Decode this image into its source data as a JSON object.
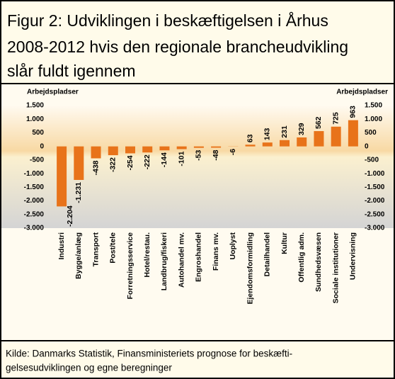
{
  "chart_data": {
    "type": "bar",
    "title": [
      "Figur 2: Udviklingen i beskæftigelsen i Århus",
      "2008-2012 hvis den regionale brancheudvikling",
      "slår fuldt igennem"
    ],
    "y_label": "Arbejdspladser",
    "y2_label": "Arbejdspladser",
    "categories": [
      "Industri",
      "Bygge/anlæg",
      "Transport",
      "Post/tele",
      "Forretningsservice",
      "Hotel/restau.",
      "Landbrug/fiskeri",
      "Autohandel mv.",
      "Engroshandel",
      "Finans mv.",
      "Uoplyst",
      "Ejendomsformidling",
      "Detailhandel",
      "Kultur",
      "Offentlig adm.",
      "Sundhedsvæsen",
      "Sociale institutioner",
      "Undervisning"
    ],
    "values": [
      -2204,
      -1231,
      -438,
      -322,
      -254,
      -222,
      -144,
      -101,
      -53,
      -48,
      -6,
      63,
      143,
      231,
      329,
      562,
      725,
      963
    ],
    "value_labels": [
      "-2.204",
      "-1.231",
      "-438",
      "-322",
      "-254",
      "-222",
      "-144",
      "-101",
      "-53",
      "-48",
      "-6",
      "63",
      "143",
      "231",
      "329",
      "562",
      "725",
      "963"
    ],
    "color": "#e8731a",
    "ylim": [
      -3000,
      1500
    ],
    "yticks": [
      {
        "value": 1500,
        "label": "1.500"
      },
      {
        "value": 1000,
        "label": "1.000"
      },
      500,
      0,
      -500,
      {
        "value": -1000,
        "label": "-1.000"
      },
      {
        "value": -1500,
        "label": "-1.500"
      },
      {
        "value": -2000,
        "label": "-2.000"
      },
      {
        "value": -2500,
        "label": "-2.500"
      },
      {
        "value": -3000,
        "label": "-3.000"
      }
    ],
    "grid": false,
    "source": [
      "Kilde: Danmarks Statistik, Finansministeriets prognose for beskæfti-",
      "gelsesudviklingen og egne beregninger"
    ]
  }
}
